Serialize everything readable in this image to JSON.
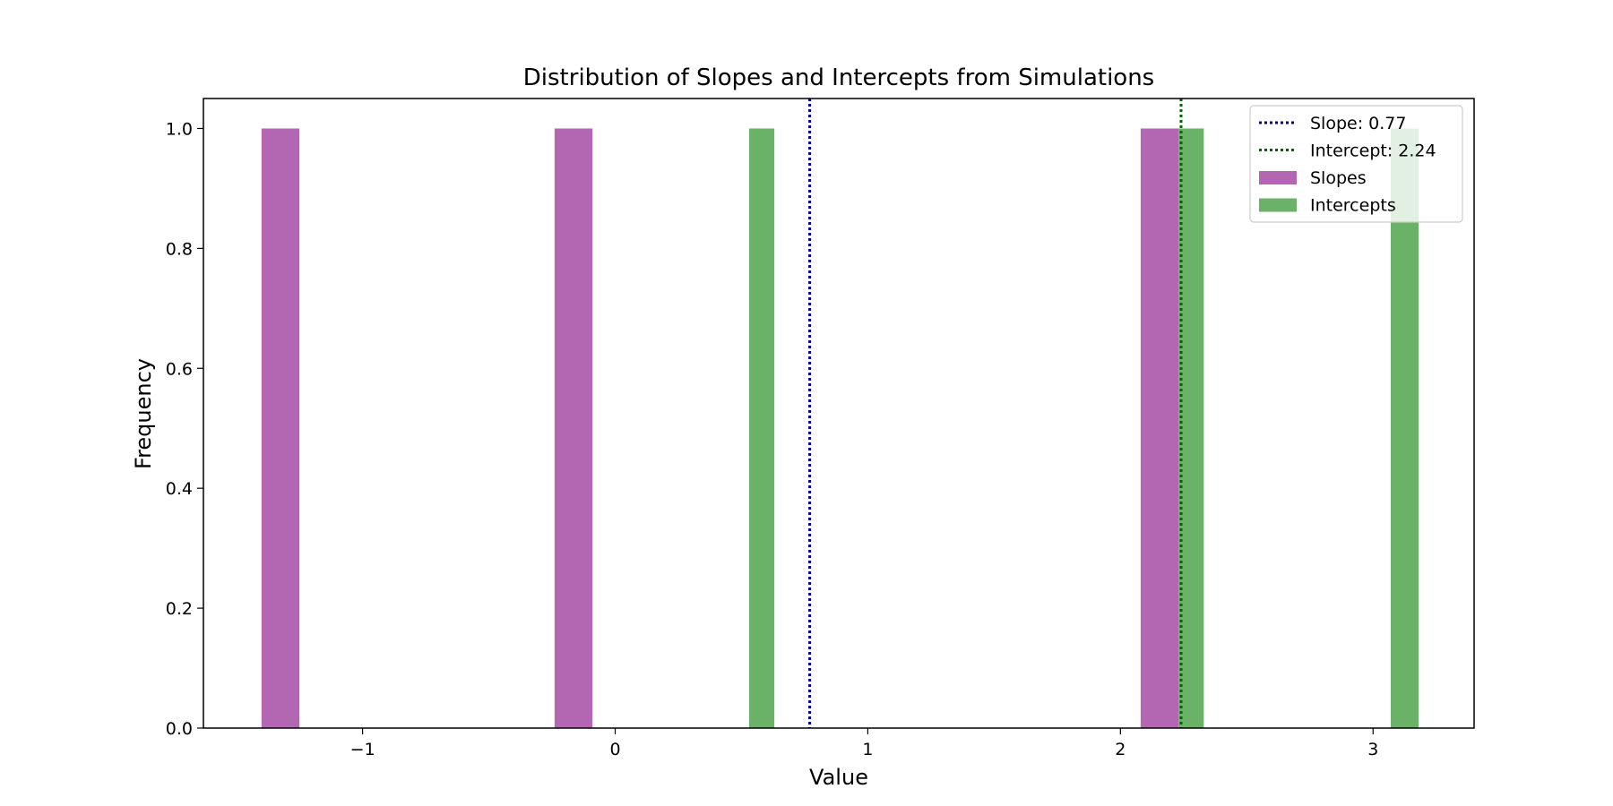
{
  "chart_data": {
    "type": "bar",
    "title": "Distribution of Slopes and Intercepts from Simulations",
    "xlabel": "Value",
    "ylabel": "Frequency",
    "xlim": [
      -1.63,
      3.4
    ],
    "ylim": [
      0,
      1.05
    ],
    "xticks": [
      -1,
      0,
      1,
      2,
      3
    ],
    "xtick_labels": [
      "−1",
      "0",
      "1",
      "2",
      "3"
    ],
    "yticks": [
      0.0,
      0.2,
      0.4,
      0.6,
      0.8,
      1.0
    ],
    "ytick_labels": [
      "0.0",
      "0.2",
      "0.4",
      "0.6",
      "0.8",
      "1.0"
    ],
    "grid": false,
    "legend_position": "top-right",
    "series": [
      {
        "name": "Slopes",
        "color": "#b366b1",
        "bins": [
          {
            "x0": -1.4,
            "x1": -1.25,
            "value": 1.0
          },
          {
            "x0": -0.24,
            "x1": -0.09,
            "value": 1.0
          },
          {
            "x0": 2.08,
            "x1": 2.23,
            "value": 1.0
          }
        ]
      },
      {
        "name": "Intercepts",
        "color": "#6ab268",
        "bins": [
          {
            "x0": 0.53,
            "x1": 0.63,
            "value": 1.0
          },
          {
            "x0": 2.23,
            "x1": 2.33,
            "value": 1.0
          },
          {
            "x0": 3.07,
            "x1": 3.18,
            "value": 1.0
          }
        ]
      }
    ],
    "reference_lines": [
      {
        "label": "Slope: 0.77",
        "x": 0.77,
        "color": "#00008b",
        "style": "dotted"
      },
      {
        "label": "Intercept: 2.24",
        "x": 2.24,
        "color": "#006400",
        "style": "dotted"
      }
    ]
  }
}
